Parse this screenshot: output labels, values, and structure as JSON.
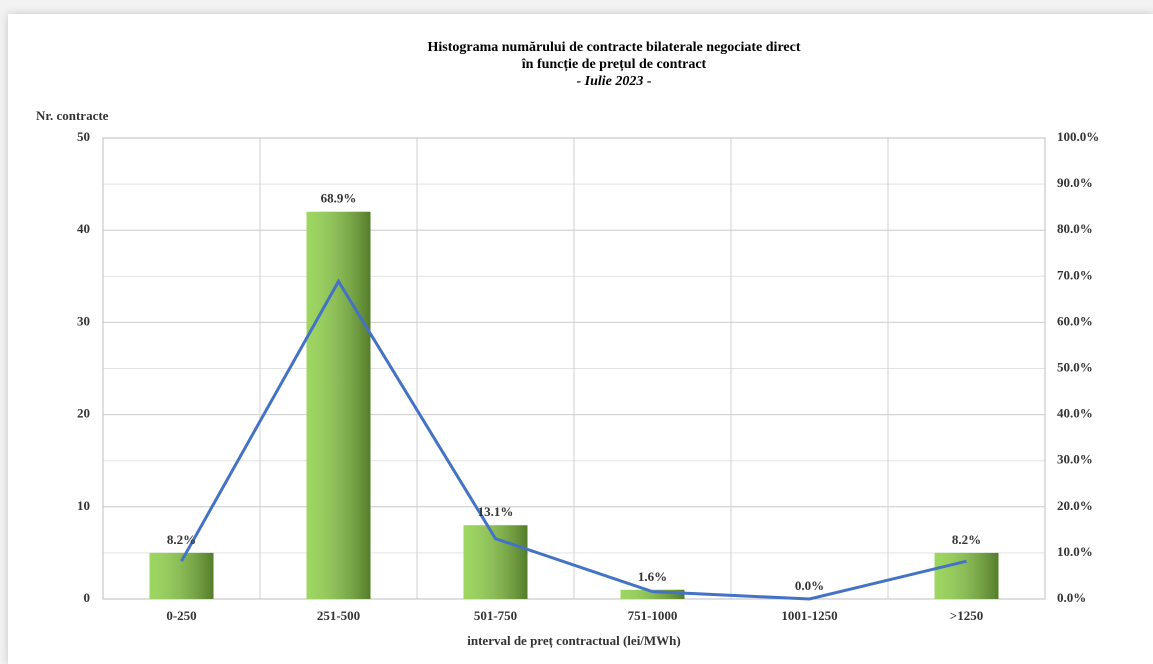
{
  "chart_data": {
    "type": "bar",
    "title": [
      "Histograma numărului de contracte bilaterale negociate direct",
      "în funcție de prețul de contract",
      "- Iulie 2023   -"
    ],
    "y_label": "Nr. contracte",
    "x_label": "interval de preț contractual (lei/MWh)",
    "categories": [
      "0-250",
      "251-500",
      "501-750",
      "751-1000",
      "1001-1250",
      ">1250"
    ],
    "series": [
      {
        "type": "bar",
        "color": "#8ccf45",
        "values": [
          5,
          42,
          8,
          1,
          0,
          5
        ]
      },
      {
        "type": "line",
        "axis": "y2",
        "color": "#4472c4",
        "values": [
          8.2,
          68.9,
          13.1,
          1.6,
          0.0,
          8.2
        ],
        "value_labels": [
          "8.2%",
          "68.9%",
          "13.1%",
          "1.6%",
          "0.0%",
          "8.2%"
        ]
      }
    ],
    "ylim": [
      0,
      50
    ],
    "yticks": [
      0,
      10,
      20,
      30,
      40,
      50
    ],
    "y2lim": [
      0,
      100
    ],
    "y2ticks": [
      {
        "value": 0,
        "label": "0.0%"
      },
      {
        "value": 10,
        "label": "10.0%"
      },
      {
        "value": 20,
        "label": "20.0%"
      },
      {
        "value": 30,
        "label": "30.0%"
      },
      {
        "value": 40,
        "label": "40.0%"
      },
      {
        "value": 50,
        "label": "50.0%"
      },
      {
        "value": 60,
        "label": "60.0%"
      },
      {
        "value": 70,
        "label": "70.0%"
      },
      {
        "value": 80,
        "label": "80.0%"
      },
      {
        "value": 90,
        "label": "90.0%"
      },
      {
        "value": 100,
        "label": "100.0%"
      }
    ],
    "grid": true
  }
}
